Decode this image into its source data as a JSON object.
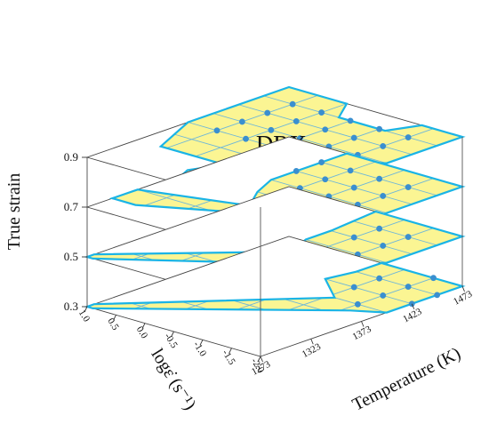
{
  "chart_data": {
    "type": "3d-stacked-processing-map",
    "title": "",
    "zlabel": "True strain",
    "xlabel": "Temperature (K)",
    "ylabel": "logε̇ (s⁻¹)",
    "z_levels": [
      0.3,
      0.5,
      0.7,
      0.9
    ],
    "z_tick_labels": [
      "0.3",
      "0.5",
      "0.7",
      "0.9"
    ],
    "xlim": [
      1273,
      1473
    ],
    "x_ticks": [
      1273,
      1323,
      1373,
      1423,
      1473
    ],
    "x_tick_labels": [
      "1273",
      "1323",
      "1373",
      "1423",
      "1473"
    ],
    "ylim": [
      -2.0,
      1.0
    ],
    "y_ticks": [
      1.0,
      0.5,
      0.0,
      -0.5,
      -1.0,
      -1.5,
      -2.0
    ],
    "y_tick_labels": [
      "1.0",
      "0.5",
      "0.0",
      "-0.5",
      "-1.0",
      "-1.5",
      "-2.0"
    ],
    "grid_x": [
      1273,
      1298,
      1323,
      1348,
      1373,
      1398,
      1423,
      1448,
      1473
    ],
    "grid_y": [
      1.0,
      0.5,
      0.0,
      -0.5,
      -1.0,
      -1.5,
      -2.0
    ],
    "annotation": "DRX",
    "annotation_layer": 0.9,
    "annotation_at": [
      1368,
      -0.7
    ],
    "region_fill": "#fbf593",
    "region_edge": "#1ab4e6",
    "point_color": "#3a8fd0",
    "layers": [
      {
        "strain": 0.9,
        "region": [
          [
            1373,
            1.0
          ],
          [
            1473,
            1.0
          ],
          [
            1473,
            0.0
          ],
          [
            1448,
            -0.3
          ],
          [
            1448,
            -1.1
          ],
          [
            1473,
            -1.3
          ],
          [
            1473,
            -2.0
          ],
          [
            1398,
            -2.0
          ],
          [
            1373,
            -1.4
          ],
          [
            1298,
            -1.1
          ],
          [
            1273,
            -1.0
          ],
          [
            1273,
            -0.5
          ],
          [
            1298,
            -0.3
          ],
          [
            1323,
            -0.5
          ],
          [
            1323,
            0.6
          ]
        ],
        "points": [
          [
            1373,
            0.5
          ],
          [
            1398,
            0.5
          ],
          [
            1423,
            0.5
          ],
          [
            1448,
            0.5
          ],
          [
            1373,
            0.0
          ],
          [
            1398,
            0.0
          ],
          [
            1423,
            0.0
          ],
          [
            1448,
            0.0
          ],
          [
            1298,
            -0.5
          ],
          [
            1323,
            -0.5
          ],
          [
            1348,
            -0.5
          ],
          [
            1373,
            -0.5
          ],
          [
            1398,
            -0.5
          ],
          [
            1423,
            -0.5
          ],
          [
            1448,
            -0.5
          ],
          [
            1298,
            -1.0
          ],
          [
            1323,
            -1.0
          ],
          [
            1348,
            -1.0
          ],
          [
            1373,
            -1.0
          ],
          [
            1398,
            -1.0
          ],
          [
            1423,
            -1.0
          ],
          [
            1448,
            -1.0
          ],
          [
            1398,
            -1.5
          ],
          [
            1423,
            -1.5
          ],
          [
            1448,
            -1.5
          ]
        ]
      },
      {
        "strain": 0.7,
        "region": [
          [
            1298,
            1.0
          ],
          [
            1323,
            1.0
          ],
          [
            1348,
            -0.5
          ],
          [
            1373,
            -0.2
          ],
          [
            1398,
            0.0
          ],
          [
            1473,
            0.0
          ],
          [
            1473,
            -2.0
          ],
          [
            1373,
            -2.0
          ],
          [
            1348,
            -1.4
          ],
          [
            1348,
            -1.1
          ],
          [
            1298,
            0.6
          ]
        ],
        "points": [
          [
            1423,
            0.0
          ],
          [
            1448,
            0.0
          ],
          [
            1398,
            -0.5
          ],
          [
            1423,
            -0.5
          ],
          [
            1448,
            -0.5
          ],
          [
            1373,
            -1.0
          ],
          [
            1398,
            -1.0
          ],
          [
            1423,
            -1.0
          ],
          [
            1448,
            -1.0
          ],
          [
            1398,
            -1.5
          ],
          [
            1423,
            -1.5
          ],
          [
            1448,
            -1.5
          ]
        ]
      },
      {
        "strain": 0.5,
        "region": [
          [
            1273,
            1.0
          ],
          [
            1280,
            1.0
          ],
          [
            1373,
            -0.8
          ],
          [
            1398,
            -0.6
          ],
          [
            1423,
            -0.6
          ],
          [
            1473,
            -0.5
          ],
          [
            1473,
            -2.0
          ],
          [
            1398,
            -2.0
          ],
          [
            1373,
            -1.6
          ],
          [
            1273,
            0.9
          ]
        ],
        "points": [
          [
            1423,
            -1.0
          ],
          [
            1448,
            -1.0
          ],
          [
            1398,
            -1.5
          ],
          [
            1423,
            -1.5
          ],
          [
            1448,
            -1.5
          ]
        ]
      },
      {
        "strain": 0.3,
        "region": [
          [
            1273,
            1.0
          ],
          [
            1280,
            1.0
          ],
          [
            1398,
            -1.1
          ],
          [
            1423,
            -0.5
          ],
          [
            1448,
            -0.6
          ],
          [
            1473,
            -0.6
          ],
          [
            1473,
            -2.0
          ],
          [
            1398,
            -2.0
          ],
          [
            1385,
            -1.6
          ],
          [
            1273,
            0.9
          ]
        ],
        "points": [
          [
            1423,
            -1.0
          ],
          [
            1448,
            -1.0
          ],
          [
            1398,
            -1.5
          ],
          [
            1423,
            -1.5
          ],
          [
            1448,
            -1.5
          ],
          [
            1473,
            -1.5
          ],
          [
            1423,
            -2.0
          ],
          [
            1448,
            -2.0
          ]
        ]
      }
    ]
  }
}
